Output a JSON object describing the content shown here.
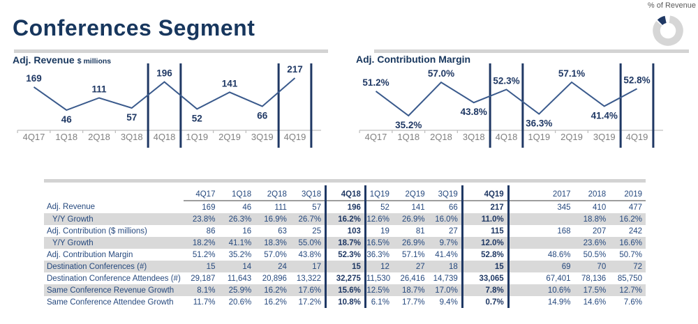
{
  "page": {
    "title": "Conferences Segment"
  },
  "donut": {
    "label": "% of Revenue",
    "highlight_share_pct": 9
  },
  "colors": {
    "navy": "#1F3864",
    "title_navy": "#17365D",
    "line_blue": "#3A5A8C",
    "axis_gray": "#7F7F7F",
    "axis_line_gray": "#BFBFBF",
    "row_shade_gray": "#D9D9D9",
    "donut_gray": "#D6D6D6"
  },
  "chart_data": [
    {
      "type": "line",
      "title": "Adj. Revenue",
      "unit_label": "$ millions",
      "categories": [
        "4Q17",
        "1Q18",
        "2Q18",
        "3Q18",
        "4Q18",
        "1Q19",
        "2Q19",
        "3Q19",
        "4Q19"
      ],
      "values": [
        169,
        46,
        111,
        57,
        196,
        52,
        141,
        66,
        217
      ],
      "value_format": "number",
      "separator_bars_between": [
        [
          "3Q18",
          "4Q18"
        ],
        [
          "4Q18",
          "1Q19"
        ],
        [
          "3Q19",
          "4Q19"
        ],
        [
          "4Q19",
          "end"
        ]
      ],
      "legend": "none",
      "grid": "off"
    },
    {
      "type": "line",
      "title": "Adj. Contribution Margin",
      "categories": [
        "4Q17",
        "1Q18",
        "2Q18",
        "3Q18",
        "4Q18",
        "1Q19",
        "2Q19",
        "3Q19",
        "4Q19"
      ],
      "values": [
        51.2,
        35.2,
        57.0,
        43.8,
        52.3,
        36.3,
        57.1,
        41.4,
        52.8
      ],
      "value_format": "percent",
      "separator_bars_between": [
        [
          "3Q18",
          "4Q18"
        ],
        [
          "4Q18",
          "1Q19"
        ],
        [
          "3Q19",
          "4Q19"
        ],
        [
          "4Q19",
          "end"
        ]
      ],
      "legend": "none",
      "grid": "off"
    },
    {
      "type": "donut",
      "title": "% of Revenue",
      "highlight_share_pct": 9
    }
  ],
  "table": {
    "columns": [
      "4Q17",
      "1Q18",
      "2Q18",
      "3Q18",
      "4Q18",
      "1Q19",
      "2Q19",
      "3Q19",
      "4Q19",
      "2017",
      "2018",
      "2019"
    ],
    "highlight_columns": [
      "4Q18",
      "4Q19"
    ],
    "rows": [
      {
        "label": "Adj. Revenue",
        "indent": false,
        "shaded": false,
        "values": [
          "169",
          "46",
          "111",
          "57",
          "196",
          "52",
          "141",
          "66",
          "217",
          "345",
          "410",
          "477"
        ]
      },
      {
        "label": "Y/Y Growth",
        "indent": true,
        "shaded": true,
        "values": [
          "23.8%",
          "26.3%",
          "16.9%",
          "26.7%",
          "16.2%",
          "12.6%",
          "26.9%",
          "16.0%",
          "11.0%",
          "",
          "18.8%",
          "16.2%"
        ]
      },
      {
        "label": "Adj. Contribution ($ millions)",
        "indent": false,
        "shaded": false,
        "values": [
          "86",
          "16",
          "63",
          "25",
          "103",
          "19",
          "81",
          "27",
          "115",
          "168",
          "207",
          "242"
        ]
      },
      {
        "label": "Y/Y Growth",
        "indent": true,
        "shaded": true,
        "values": [
          "18.2%",
          "41.1%",
          "18.3%",
          "55.0%",
          "18.7%",
          "16.5%",
          "26.9%",
          "9.7%",
          "12.0%",
          "",
          "23.6%",
          "16.6%"
        ]
      },
      {
        "label": "Adj. Contribution Margin",
        "indent": false,
        "shaded": false,
        "values": [
          "51.2%",
          "35.2%",
          "57.0%",
          "43.8%",
          "52.3%",
          "36.3%",
          "57.1%",
          "41.4%",
          "52.8%",
          "48.6%",
          "50.5%",
          "50.7%"
        ]
      },
      {
        "label": "Destination Conferences (#)",
        "indent": false,
        "shaded": true,
        "values": [
          "15",
          "14",
          "24",
          "17",
          "15",
          "12",
          "27",
          "18",
          "15",
          "69",
          "70",
          "72"
        ]
      },
      {
        "label": "Destination Conference Attendees (#)",
        "indent": false,
        "shaded": false,
        "values": [
          "29,187",
          "11,643",
          "20,896",
          "13,322",
          "32,275",
          "11,530",
          "26,416",
          "14,739",
          "33,065",
          "67,401",
          "78,136",
          "85,750"
        ]
      },
      {
        "label": "Same Conference Revenue Growth",
        "indent": false,
        "shaded": true,
        "values": [
          "8.1%",
          "25.9%",
          "16.2%",
          "17.6%",
          "15.6%",
          "12.5%",
          "18.7%",
          "17.0%",
          "7.8%",
          "10.6%",
          "17.5%",
          "12.7%"
        ]
      },
      {
        "label": "Same Conference Attendee Growth",
        "indent": false,
        "shaded": false,
        "values": [
          "11.7%",
          "20.6%",
          "16.2%",
          "17.2%",
          "10.8%",
          "6.1%",
          "17.7%",
          "9.4%",
          "0.7%",
          "14.9%",
          "14.6%",
          "7.6%"
        ]
      }
    ]
  }
}
